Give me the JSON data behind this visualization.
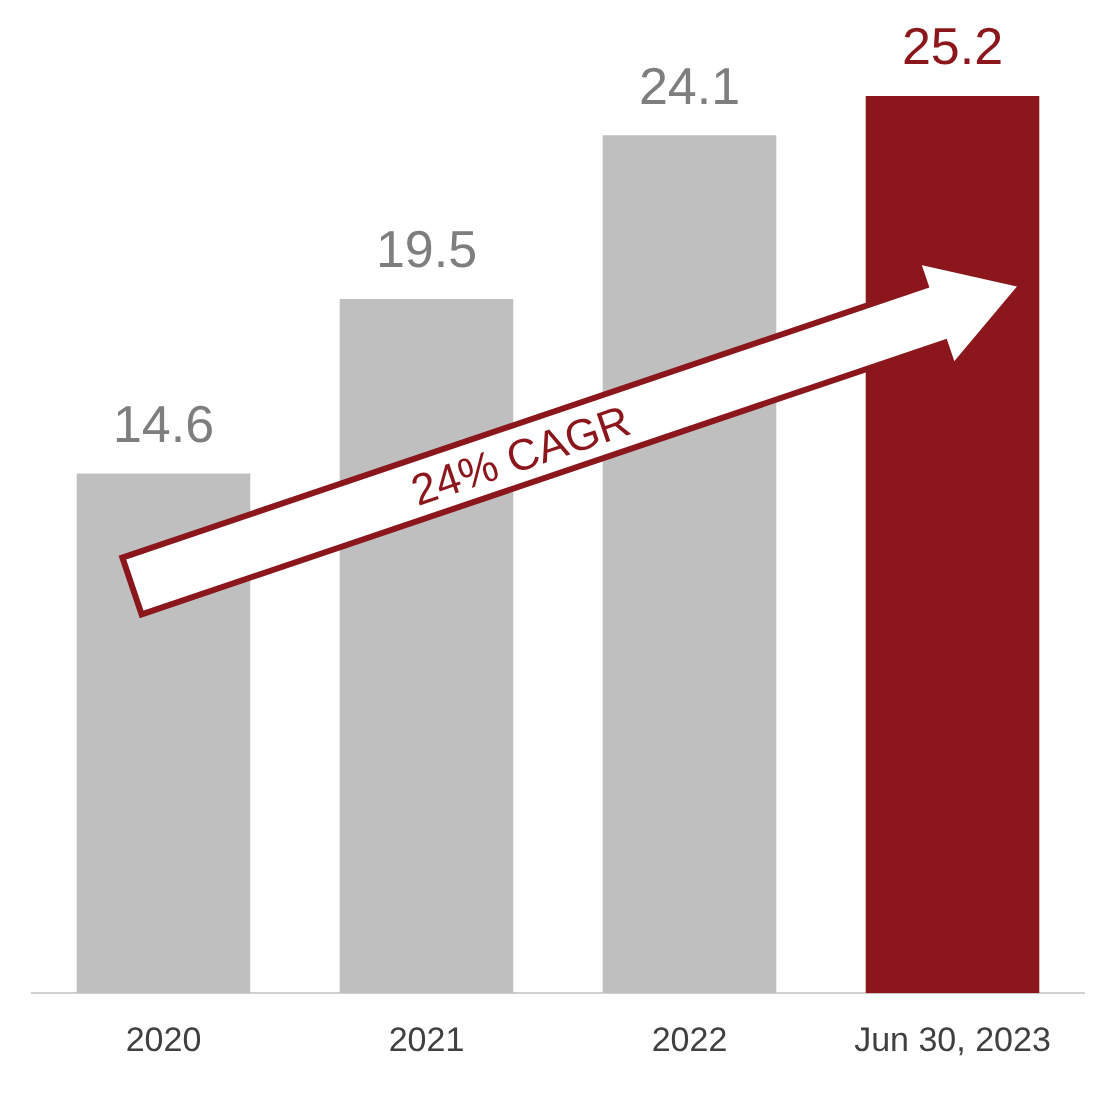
{
  "chart_data": {
    "type": "bar",
    "categories": [
      "2020",
      "2021",
      "2022",
      "Jun 30, 2023"
    ],
    "values": [
      14.6,
      19.5,
      24.1,
      25.2
    ],
    "colors": [
      "#bfbfbf",
      "#bfbfbf",
      "#bfbfbf",
      "#8b161c"
    ],
    "data_labels": true,
    "grid": false,
    "legend": false,
    "tick_labels": "x",
    "annotations": [
      "24% CAGR"
    ]
  }
}
